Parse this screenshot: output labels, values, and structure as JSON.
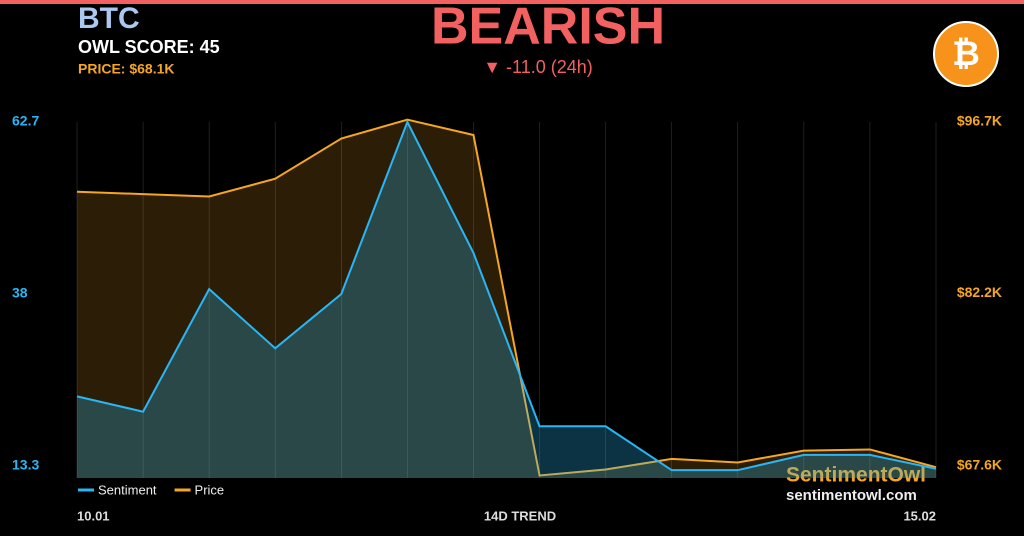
{
  "chart_data": {
    "type": "line",
    "title": "BTC",
    "score_label": "OWL SCORE: 45",
    "price_label": "PRICE: $68.1K",
    "signal": "BEARISH",
    "change": "▼ -11.0 (24h)",
    "logo": "₿",
    "xlabel": "14D TREND",
    "watermark": [
      "SentimentOwl",
      "sentimentowl.com"
    ],
    "categories": [
      "10.01",
      null,
      null,
      null,
      null,
      null,
      null,
      null,
      null,
      null,
      null,
      null,
      null,
      "15.02"
    ],
    "series": [
      {
        "name": "Sentiment",
        "color": "#29b6f6",
        "values": [
          23.3,
          21.1,
          38.7,
          30.2,
          38.0,
          62.7,
          43.9,
          19.0,
          19.0,
          12.7,
          12.7,
          14.9,
          14.9,
          12.9
        ]
      },
      {
        "name": "Price",
        "color": "#f5a623",
        "axis": "y2",
        "values": [
          90800,
          90600,
          90400,
          91900,
          95300,
          96900,
          95600,
          66800,
          67300,
          68200,
          67900,
          68900,
          69000,
          67500
        ]
      }
    ],
    "ylim": [
      13.3,
      62.7
    ],
    "yticks": [
      13.3,
      38.0,
      62.7
    ],
    "y2lim": [
      67600,
      96700
    ],
    "y2ticks": [
      {
        "value": 67600,
        "label": "$67.6K"
      },
      {
        "value": 82200,
        "label": "$82.2K"
      },
      {
        "value": 96700,
        "label": "$96.7K"
      }
    ]
  }
}
